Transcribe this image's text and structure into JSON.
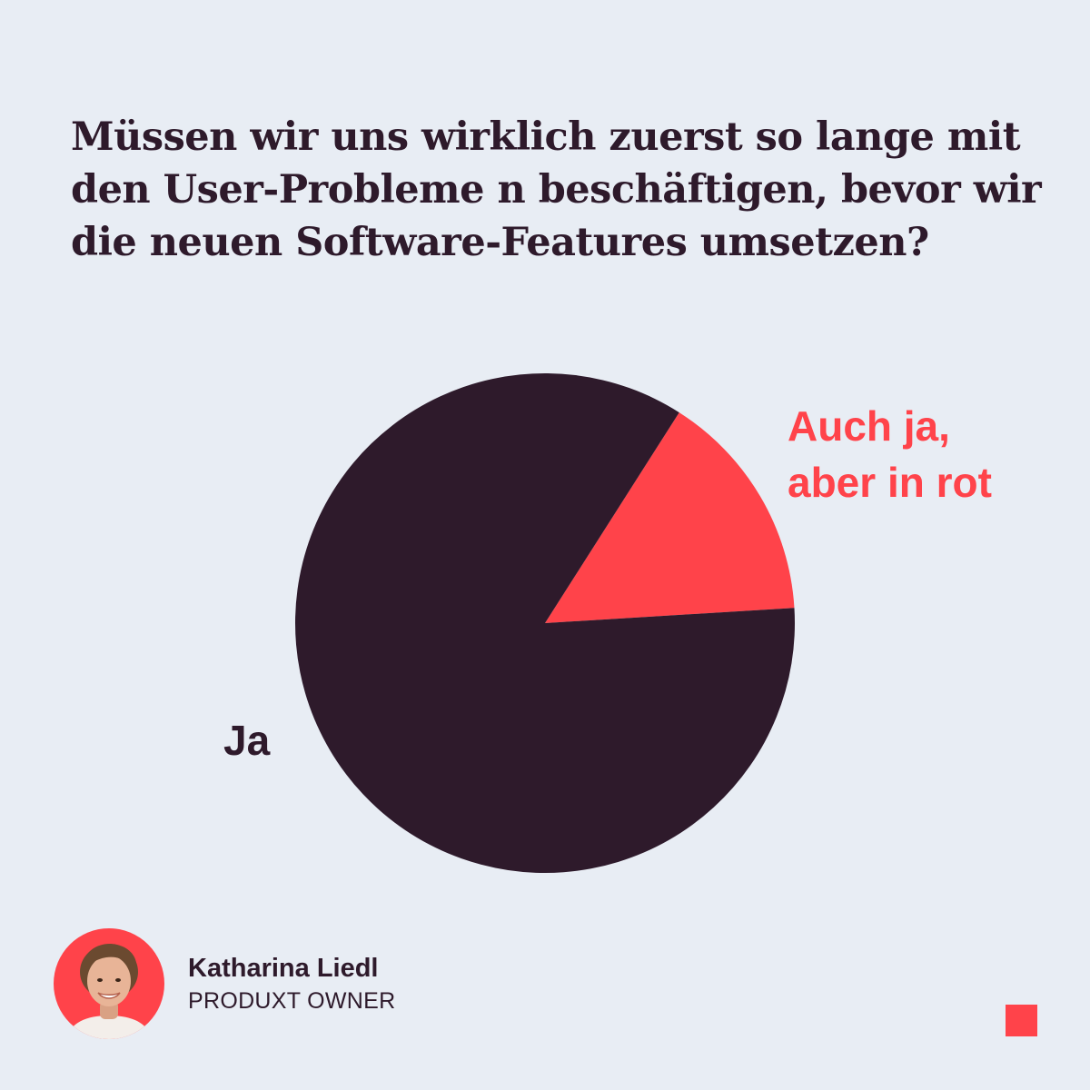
{
  "question": {
    "lines": [
      "Müssen wir uns wirklich zuerst so lange mit",
      "den User-Probleme n beschäftigen, bevor wir",
      "die neuen Software-Features umsetzen?"
    ]
  },
  "chart_data": {
    "type": "pie",
    "slices": [
      {
        "label": "Auch ja, aber in rot",
        "label_lines": [
          "Auch ja,",
          "aber in rot"
        ],
        "value": 15,
        "color": "#ff434a"
      },
      {
        "label": "Ja",
        "label_lines": [
          "Ja"
        ],
        "value": 85,
        "color": "#2e1a2b"
      }
    ],
    "start_angle_deg": 32.5,
    "direction": "clockwise",
    "legend": "none"
  },
  "author": {
    "name": "Katharina Liedl",
    "role": "PRODUXT OWNER",
    "avatar_icon": "person-portrait-icon"
  },
  "colors": {
    "background": "#e8edf4",
    "text": "#2e1a2b",
    "accent": "#ff434a"
  },
  "brand_mark": "red-square-logo"
}
